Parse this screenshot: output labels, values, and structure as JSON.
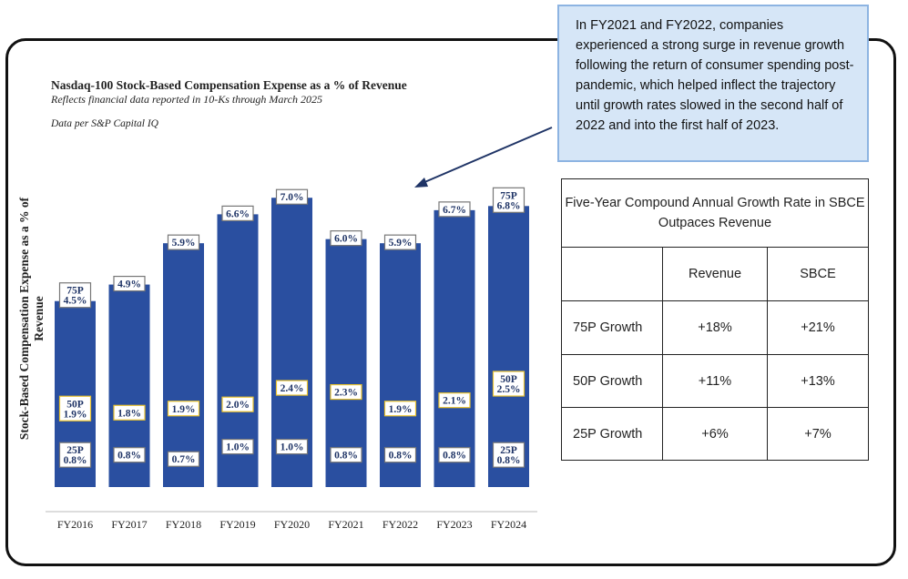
{
  "chart_data": {
    "type": "bar",
    "title": "Nasdaq-100 Stock-Based Compensation Expense as a % of Revenue",
    "subtitle": "Reflects financial data reported in 10-Ks through March 2025",
    "source": "Data per S&P Capital IQ",
    "ylabel": "Stock-Based Compensation Expense as a % of Revenue",
    "ylim": [
      0,
      7.6
    ],
    "categories": [
      "FY2016",
      "FY2017",
      "FY2018",
      "FY2019",
      "FY2020",
      "FY2021",
      "FY2022",
      "FY2023",
      "FY2024"
    ],
    "series": [
      {
        "name": "75P",
        "values": [
          4.5,
          4.9,
          5.9,
          6.6,
          7.0,
          6.0,
          5.9,
          6.7,
          6.8
        ],
        "labels": [
          "4.5%",
          "4.9%",
          "5.9%",
          "6.6%",
          "7.0%",
          "6.0%",
          "5.9%",
          "6.7%",
          "6.8%"
        ]
      },
      {
        "name": "50P",
        "values": [
          1.9,
          1.8,
          1.9,
          2.0,
          2.4,
          2.3,
          1.9,
          2.1,
          2.5
        ],
        "labels": [
          "1.9%",
          "1.8%",
          "1.9%",
          "2.0%",
          "2.4%",
          "2.3%",
          "1.9%",
          "2.1%",
          "2.5%"
        ]
      },
      {
        "name": "25P",
        "values": [
          0.8,
          0.8,
          0.7,
          1.0,
          1.0,
          0.8,
          0.8,
          0.8,
          0.8
        ],
        "labels": [
          "0.8%",
          "0.8%",
          "0.7%",
          "1.0%",
          "1.0%",
          "0.8%",
          "0.8%",
          "0.8%",
          "0.8%"
        ]
      }
    ],
    "annotated": [
      {
        "index": 0,
        "tags": {
          "75P": "75P",
          "50P": "50P",
          "25P": "25P"
        }
      },
      {
        "index": 8,
        "tags": {
          "75P": "75P",
          "50P": "50P",
          "25P": "25P"
        }
      }
    ],
    "bar_color": "#2a4fa0"
  },
  "callout": {
    "text": "In FY2021 and FY2022, companies experienced a strong surge in revenue growth following the return of consumer spending post-pandemic, which helped inflect the trajectory until growth rates slowed in the second half of 2022 and into the first half of 2023."
  },
  "table": {
    "caption": "Five-Year Compound Annual Growth Rate in SBCE Outpaces Revenue",
    "headers": [
      "",
      "Revenue",
      "SBCE"
    ],
    "rows": [
      {
        "label": "75P Growth",
        "revenue": "+18%",
        "sbce": "+21%"
      },
      {
        "label": "50P Growth",
        "revenue": "+11%",
        "sbce": "+13%"
      },
      {
        "label": "25P Growth",
        "revenue": "+6%",
        "sbce": "+7%"
      }
    ]
  }
}
